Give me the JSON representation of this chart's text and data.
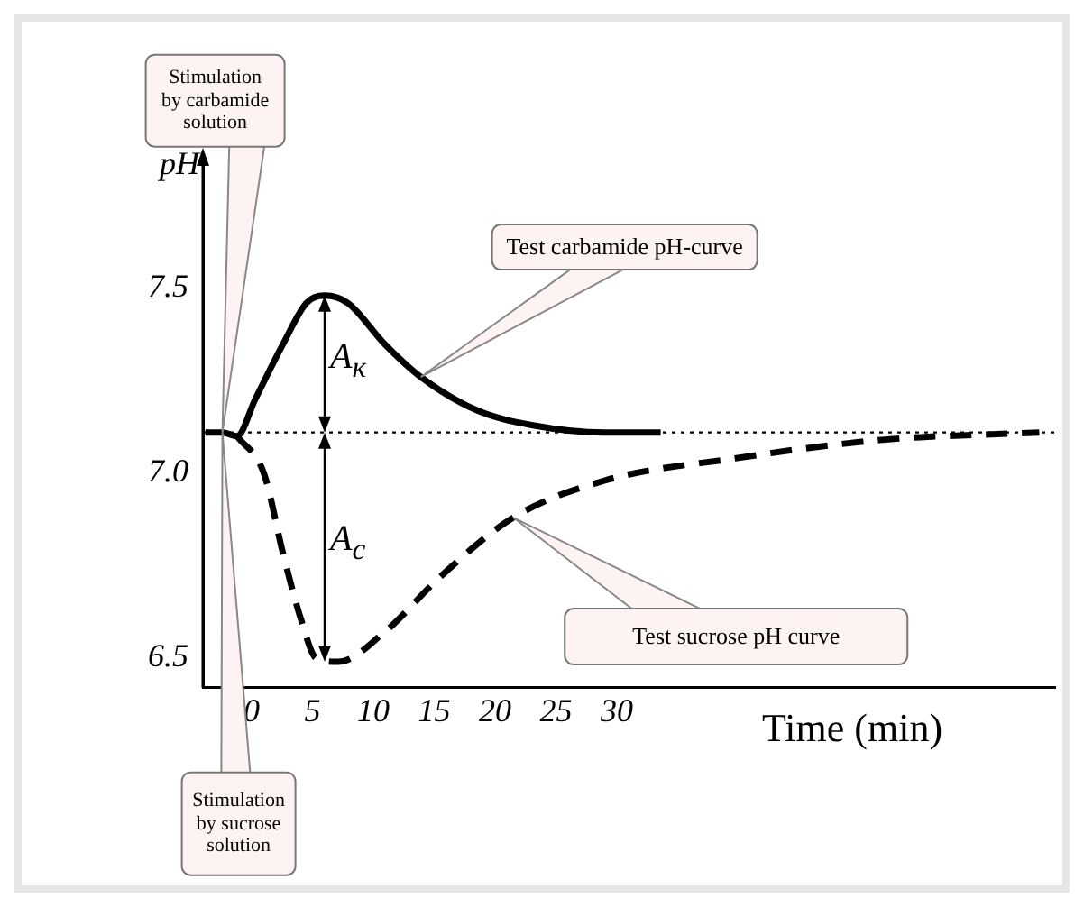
{
  "chart_data": {
    "type": "line",
    "xlabel": "Time (min)",
    "ylabel": "pH",
    "xlim": [
      -4,
      66
    ],
    "xticks": [
      0,
      5,
      10,
      15,
      20,
      25,
      30
    ],
    "ylim": [
      6.42,
      7.85
    ],
    "yticks": [
      6.5,
      {
        "value": 7.0,
        "label": "7.0"
      },
      7.5
    ],
    "tick_labels": "xy",
    "grid": false,
    "legend": false,
    "marker": "none",
    "series": [
      {
        "color": "#000000",
        "line_style": "solid",
        "x": [
          -3.8,
          -2.4,
          -1.2,
          0.3,
          2.6,
          4.5,
          6,
          7.9,
          10.9,
          13.9,
          18.5,
          23,
          29,
          33.6
        ],
        "values": [
          7.11,
          7.11,
          7.1,
          7.2,
          7.35,
          7.46,
          7.48,
          7.46,
          7.35,
          7.26,
          7.17,
          7.13,
          7.11,
          7.11
        ]
      },
      {
        "color": "#000000",
        "line_style": "dashed",
        "x": [
          -1.2,
          1,
          2.6,
          4.1,
          5.3,
          7.1,
          10.9,
          15.5,
          21.5,
          29,
          39.7,
          51.8,
          64.7
        ],
        "values": [
          7.1,
          7.0,
          6.78,
          6.6,
          6.5,
          6.49,
          6.57,
          6.72,
          6.88,
          6.98,
          7.04,
          7.09,
          7.11
        ]
      }
    ],
    "ref_lines": [
      {
        "axis": "y",
        "value": 7.11,
        "line_style": "dotted",
        "color": "#000000"
      }
    ],
    "annotations": [
      "Stimulation\nby carbamide\nsolution",
      "Test carbamide pH-curve",
      "Stimulation\nby sucrose\nsolution",
      "Test sucrose pH curve",
      "A$_{к}$",
      "A$_{c}$"
    ]
  }
}
